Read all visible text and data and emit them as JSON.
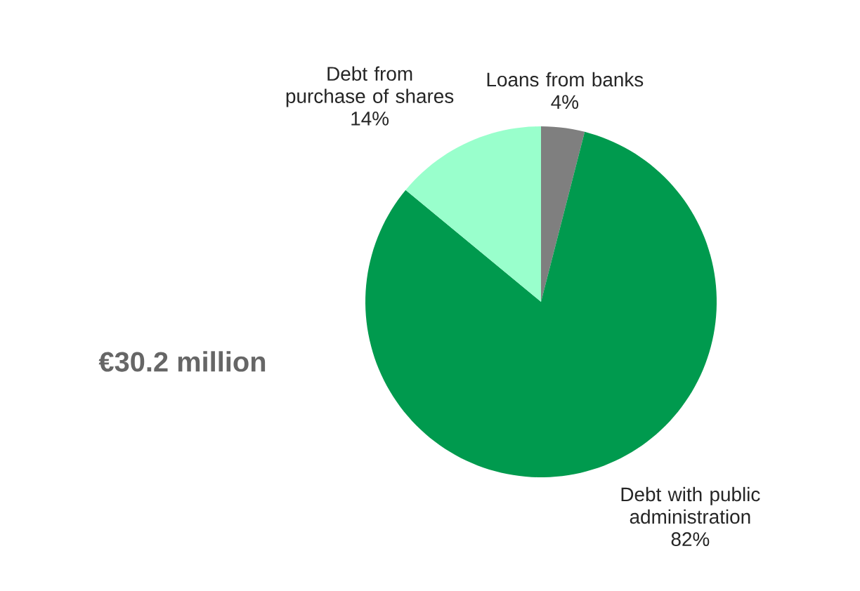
{
  "chart_data": {
    "type": "pie",
    "categories": [
      "Loans from banks",
      "Debt with public administration",
      "Debt from purchase of shares"
    ],
    "values": [
      4,
      82,
      14
    ],
    "colors": [
      "#7f7f7f",
      "#009a4e",
      "#99ffcc"
    ],
    "value_labels": [
      "4%",
      "82%",
      "14%"
    ],
    "annotations": [
      "€30.2 million"
    ]
  }
}
